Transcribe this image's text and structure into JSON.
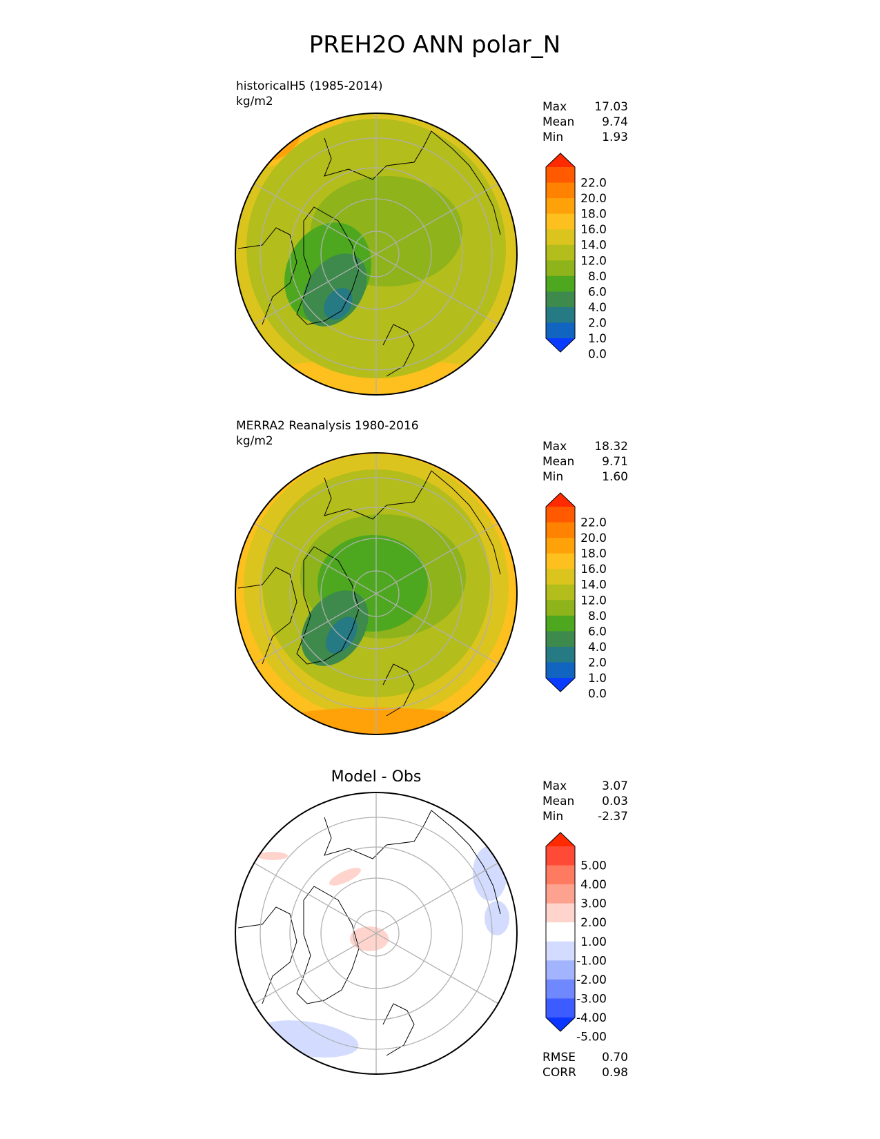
{
  "title": "PREH2O ANN polar_N",
  "colors": {
    "coast": "#000000",
    "grid": "#b0b0b0",
    "rim": "#000000"
  },
  "chart_data": [
    {
      "type": "heatmap",
      "projection": "north-polar-stereographic",
      "title_left": "historicalH5 (1985-2014)",
      "units": "kg/m2",
      "stats": [
        {
          "label": "Max",
          "value": "17.03"
        },
        {
          "label": "Mean",
          "value": "9.74"
        },
        {
          "label": "Min",
          "value": "1.93"
        }
      ],
      "colorbar": {
        "extend": "both",
        "tick_labels": [
          "22.0",
          "20.0",
          "18.0",
          "16.0",
          "14.0",
          "12.0",
          "8.0",
          "6.0",
          "4.0",
          "2.0",
          "1.0",
          "0.0"
        ],
        "colors": [
          "#ff2a00",
          "#ff5a00",
          "#ff8200",
          "#ffa20a",
          "#fdc01e",
          "#dcc41e",
          "#b3bd1b",
          "#8eb31b",
          "#4ea81f",
          "#3d8a4c",
          "#257a84",
          "#1164c0",
          "#0a3cff"
        ]
      },
      "field": {
        "pole_value": 8.0,
        "outer_value": 12.5,
        "greenland_min": 1.93,
        "pacific_band": 15.5,
        "max": 17.03,
        "mean": 9.74,
        "min": 1.93
      }
    },
    {
      "type": "heatmap",
      "projection": "north-polar-stereographic",
      "title_left": "MERRA2 Reanalysis 1980-2016",
      "units": "kg/m2",
      "stats": [
        {
          "label": "Max",
          "value": "18.32"
        },
        {
          "label": "Mean",
          "value": "9.71"
        },
        {
          "label": "Min",
          "value": "1.60"
        }
      ],
      "colorbar": {
        "extend": "both",
        "tick_labels": [
          "22.0",
          "20.0",
          "18.0",
          "16.0",
          "14.0",
          "12.0",
          "8.0",
          "6.0",
          "4.0",
          "2.0",
          "1.0",
          "0.0"
        ],
        "colors": [
          "#ff2a00",
          "#ff5a00",
          "#ff8200",
          "#ffa20a",
          "#fdc01e",
          "#dcc41e",
          "#b3bd1b",
          "#8eb31b",
          "#4ea81f",
          "#3d8a4c",
          "#257a84",
          "#1164c0",
          "#0a3cff"
        ]
      },
      "field": {
        "pole_value": 5.5,
        "outer_value": 13.5,
        "greenland_min": 1.6,
        "pacific_band": 16.5,
        "max": 18.32,
        "mean": 9.71,
        "min": 1.6
      }
    },
    {
      "type": "heatmap",
      "projection": "north-polar-stereographic",
      "title_center": "Model - Obs",
      "stats": [
        {
          "label": "Max",
          "value": "3.07"
        },
        {
          "label": "Mean",
          "value": "0.03"
        },
        {
          "label": "Min",
          "value": "-2.37"
        }
      ],
      "colorbar": {
        "extend": "both",
        "tick_labels": [
          "5.00",
          "4.00",
          "3.00",
          "2.00",
          "1.00",
          "-1.00",
          "-2.00",
          "-3.00",
          "-4.00",
          "-5.00"
        ],
        "colors": [
          "#ff2a00",
          "#fe4a36",
          "#fe7a60",
          "#fea290",
          "#ffd4cc",
          "#ffffff",
          "#d3dcfe",
          "#a2b4fe",
          "#6f88fe",
          "#3c5cff",
          "#0a36ff"
        ]
      },
      "footer_stats": [
        {
          "label": "RMSE",
          "value": "0.70"
        },
        {
          "label": "CORR",
          "value": "0.98"
        }
      ]
    }
  ]
}
